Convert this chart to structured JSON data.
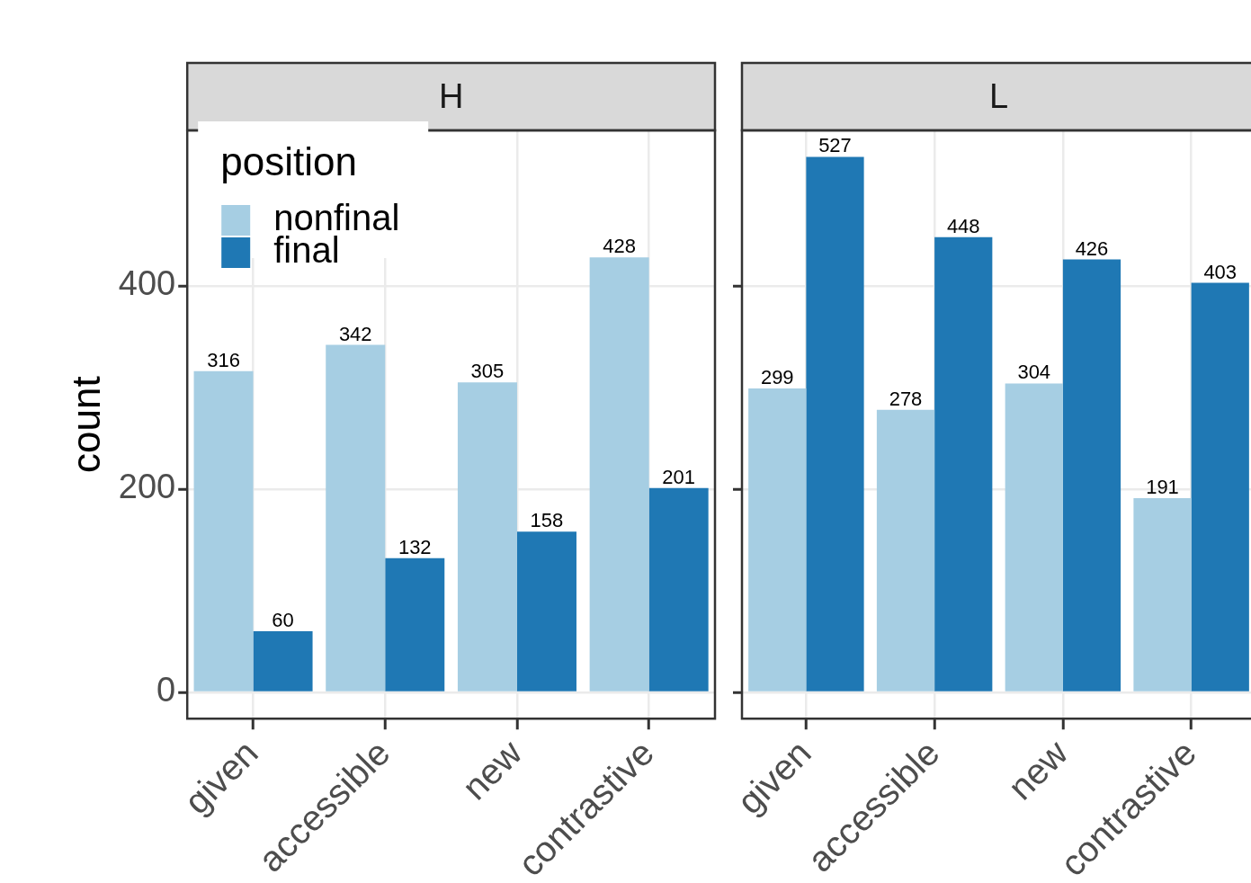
{
  "chart_data": [
    {
      "type": "bar",
      "title": "H",
      "ylabel": "count",
      "legend_title": "position",
      "legend": "top left",
      "categories": [
        "given",
        "accessible",
        "new",
        "contrastive"
      ],
      "series": [
        {
          "name": "nonfinal",
          "color": "#a6cee3",
          "values": [
            316,
            342,
            305,
            428
          ]
        },
        {
          "name": "final",
          "color": "#1f78b4",
          "values": [
            60,
            132,
            158,
            201
          ]
        }
      ],
      "ylim": [
        -26,
        553
      ],
      "yticks": [
        0,
        200,
        400
      ],
      "grid": true,
      "data_labels": true
    },
    {
      "type": "bar",
      "title": "L",
      "tick_labels": "x",
      "categories": [
        "given",
        "accessible",
        "new",
        "contrastive"
      ],
      "series": [
        {
          "color": "#a6cee3",
          "values": [
            299,
            278,
            304,
            191
          ]
        },
        {
          "color": "#1f78b4",
          "values": [
            527,
            448,
            426,
            403
          ]
        }
      ],
      "ylim": [
        -26,
        553
      ],
      "yticks": [
        0,
        200,
        400
      ],
      "grid": true,
      "data_labels": true
    }
  ]
}
